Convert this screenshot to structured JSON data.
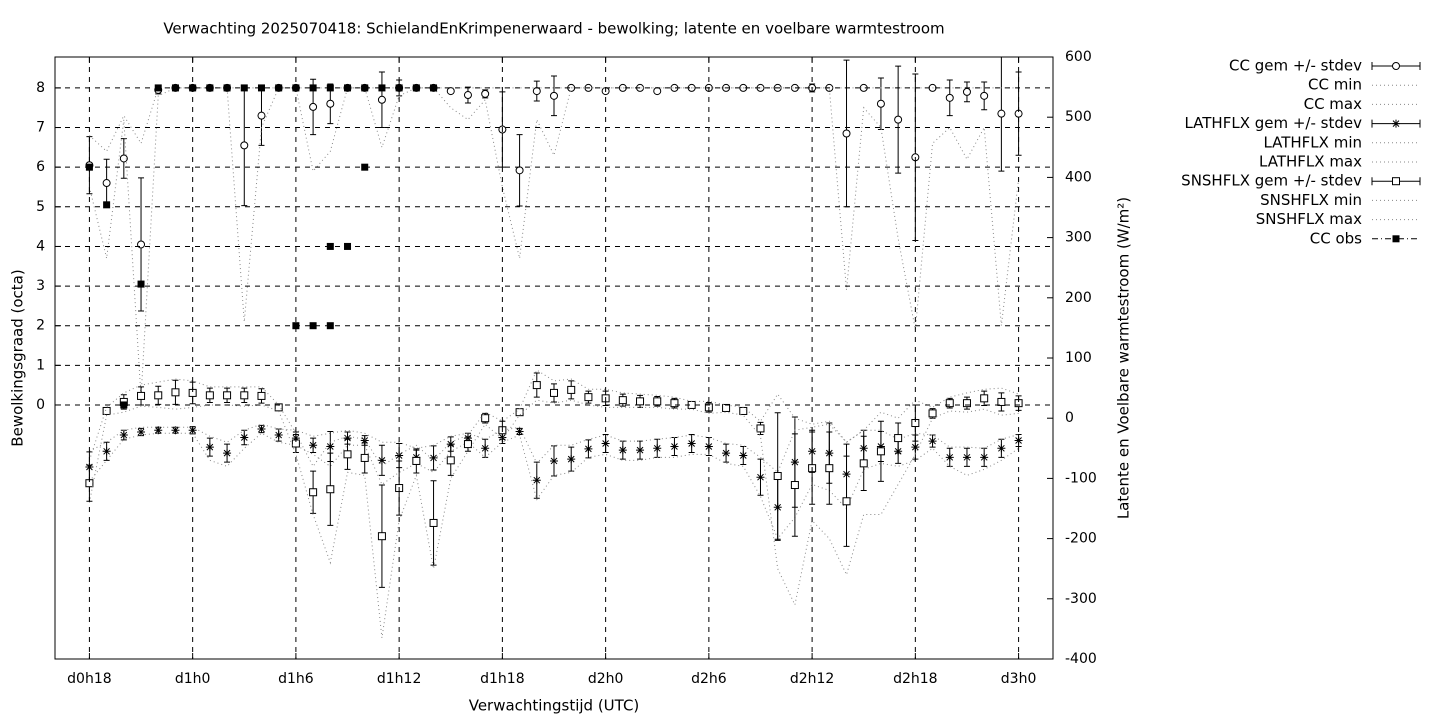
{
  "chart_data": {
    "type": "errorbar",
    "title": "Verwachting 2025070418: SchielandEnKrimpenerwaard - bewolking; latente en voelbare warmtestroom",
    "x_label": "Verwachtingstijd (UTC)",
    "y_label": "Bewolkingsgraad (octa)",
    "y2_label": "Latente en Voelbare warmtestroom (W/m²)",
    "xlim": [
      16,
      74
    ],
    "xticks": [
      {
        "value": 18,
        "label": "d0h18"
      },
      {
        "value": 24,
        "label": "d1h0"
      },
      {
        "value": 30,
        "label": "d1h6"
      },
      {
        "value": 36,
        "label": "d1h12"
      },
      {
        "value": 42,
        "label": "d1h18"
      },
      {
        "value": 48,
        "label": "d2h0"
      },
      {
        "value": 54,
        "label": "d2h6"
      },
      {
        "value": 60,
        "label": "d2h12"
      },
      {
        "value": 66,
        "label": "d2h18"
      },
      {
        "value": 72,
        "label": "d3h0"
      }
    ],
    "ylim": [
      -6.41,
      8.78
    ],
    "yticks": [
      0,
      1,
      2,
      3,
      4,
      5,
      6,
      7,
      8
    ],
    "y2lim": [
      -400,
      600
    ],
    "y2ticks": [
      -400,
      -300,
      -200,
      -100,
      0,
      100,
      200,
      300,
      400,
      500,
      600
    ],
    "grid": true,
    "legend": "outside-right",
    "x": [
      18,
      19,
      20,
      21,
      22,
      23,
      24,
      25,
      26,
      27,
      28,
      29,
      30,
      31,
      32,
      33,
      34,
      35,
      36,
      37,
      38,
      39,
      40,
      41,
      42,
      43,
      44,
      45,
      46,
      47,
      48,
      49,
      50,
      51,
      52,
      53,
      54,
      55,
      56,
      57,
      58,
      59,
      60,
      61,
      62,
      63,
      64,
      65,
      66,
      67,
      68,
      69,
      70,
      71,
      72
    ],
    "series": [
      {
        "name": "CC gem +/- stdev",
        "color": "#000000",
        "axis": "y",
        "marker": "circle",
        "values": [
          6.05,
          5.6,
          6.22,
          4.05,
          7.95,
          8,
          8,
          8,
          8,
          6.55,
          7.3,
          8,
          8,
          7.52,
          7.6,
          8,
          8,
          7.7,
          8,
          8,
          8,
          7.92,
          7.82,
          7.85,
          6.95,
          5.92,
          7.92,
          7.8,
          8,
          8,
          7.92,
          8,
          8,
          7.92,
          8,
          8,
          8,
          8,
          8,
          8,
          8,
          8,
          8,
          8,
          6.85,
          8,
          7.6,
          7.2,
          6.25,
          8,
          7.75,
          7.9,
          7.8,
          7.35,
          7.35
        ],
        "errors": [
          0.72,
          0.6,
          0.5,
          1.68,
          0.1,
          0,
          0,
          0,
          0,
          1.52,
          0.75,
          0,
          0,
          0.7,
          0.5,
          0,
          0,
          0.7,
          0.2,
          0,
          0,
          0.05,
          0.2,
          0.1,
          0.95,
          0.9,
          0.25,
          0.5,
          0,
          0,
          0.05,
          0,
          0,
          0,
          0,
          0,
          0,
          0,
          0,
          0,
          0,
          0,
          0.1,
          0,
          1.85,
          0,
          0.65,
          1.35,
          2.1,
          0,
          0.45,
          0.25,
          0.35,
          1.45,
          1.05
        ]
      },
      {
        "name": "CC min",
        "color": "#888888",
        "axis": "y",
        "line": "dotted",
        "values": [
          5.5,
          3.7,
          7.2,
          0.2,
          7.8,
          8,
          8,
          8,
          8,
          2.1,
          7,
          8,
          8,
          5.9,
          6.4,
          8,
          8,
          6.5,
          7.8,
          8,
          8,
          7.5,
          7.2,
          7.7,
          5.5,
          3.7,
          7.2,
          6.3,
          8,
          8,
          8,
          8,
          8,
          8,
          8,
          8,
          8,
          8,
          8,
          8,
          8,
          8,
          8,
          8,
          2.9,
          7.5,
          7,
          4.2,
          1.9,
          6.6,
          7,
          6.2,
          7,
          2,
          5.7
        ]
      },
      {
        "name": "CC max",
        "color": "#888888",
        "axis": "y",
        "line": "dotted",
        "values": [
          6.8,
          6.4,
          7.3,
          6.6,
          8,
          8,
          8,
          8,
          8,
          8,
          8,
          8,
          8,
          8,
          8,
          8,
          8,
          8,
          8,
          8,
          8,
          8,
          8,
          8,
          8,
          8,
          8,
          8,
          8,
          8,
          8,
          8,
          8,
          8,
          8,
          8,
          8,
          8,
          8,
          8,
          8,
          8,
          8,
          8,
          8,
          8,
          8,
          8,
          8,
          8,
          8,
          8,
          8,
          8,
          8
        ]
      },
      {
        "name": "LATHFLX gem +/- stdev",
        "color": "#000000",
        "axis": "y2",
        "marker": "star",
        "values": [
          -81,
          -55,
          -28,
          -23,
          -20,
          -20,
          -20,
          -48,
          -58,
          -32,
          -18,
          -28,
          -33,
          -45,
          -47,
          -33,
          -37,
          -70,
          -62,
          -65,
          -66,
          -43,
          -33,
          -50,
          -32,
          -22,
          -103,
          -71,
          -68,
          -51,
          -42,
          -53,
          -53,
          -50,
          -47,
          -42,
          -47,
          -58,
          -62,
          -98,
          -148,
          -73,
          -55,
          -58,
          -93,
          -50,
          -47,
          -55,
          -48,
          -38,
          -65,
          -65,
          -65,
          -50,
          -37
        ],
        "errors": [
          25,
          15,
          8,
          6,
          5,
          5,
          6,
          15,
          15,
          12,
          6,
          10,
          10,
          12,
          25,
          10,
          8,
          25,
          20,
          12,
          20,
          12,
          8,
          15,
          10,
          5,
          30,
          25,
          20,
          15,
          15,
          15,
          15,
          15,
          15,
          15,
          15,
          15,
          15,
          30,
          55,
          75,
          35,
          50,
          50,
          30,
          25,
          20,
          20,
          10,
          15,
          15,
          15,
          15,
          10
        ]
      },
      {
        "name": "LATHFLX min",
        "color": "#888888",
        "axis": "y2",
        "line": "dotted",
        "values": [
          -105,
          -70,
          -35,
          -28,
          -25,
          -25,
          -25,
          -70,
          -80,
          -50,
          -25,
          -40,
          -45,
          -60,
          -80,
          -45,
          -45,
          -110,
          -90,
          -75,
          -90,
          -55,
          -40,
          -65,
          -40,
          -28,
          -135,
          -95,
          -90,
          -65,
          -60,
          -70,
          -70,
          -65,
          -65,
          -60,
          -60,
          -75,
          -80,
          -130,
          -200,
          -165,
          -110,
          -120,
          -150,
          -85,
          -75,
          -80,
          -70,
          -50,
          -80,
          -95,
          -85,
          -70,
          -50
        ]
      },
      {
        "name": "LATHFLX max",
        "color": "#888888",
        "axis": "y2",
        "line": "dotted",
        "values": [
          -55,
          -40,
          -20,
          -15,
          -15,
          -15,
          -15,
          -30,
          -40,
          -20,
          -10,
          -18,
          -20,
          -30,
          -25,
          -20,
          -25,
          -40,
          -40,
          -50,
          -45,
          -30,
          -25,
          -35,
          -20,
          -15,
          -75,
          -45,
          -45,
          -35,
          -28,
          -38,
          -38,
          -35,
          -32,
          -28,
          -32,
          -42,
          -45,
          -65,
          -90,
          -20,
          -15,
          -10,
          -40,
          -20,
          -20,
          -35,
          -25,
          -28,
          -48,
          -48,
          -50,
          -35,
          -27
        ]
      },
      {
        "name": "SNSHFLX gem +/- stdev",
        "color": "#000000",
        "axis": "y2",
        "marker": "square",
        "values": [
          -108,
          12,
          27,
          37,
          38,
          43,
          42,
          38,
          38,
          38,
          37,
          18,
          -42,
          -123,
          -118,
          -60,
          -66,
          -196,
          -116,
          -71,
          -174,
          -70,
          -43,
          0,
          -20,
          10,
          55,
          42,
          47,
          35,
          33,
          30,
          28,
          28,
          25,
          22,
          18,
          17,
          12,
          -17,
          -96,
          -111,
          -83,
          -83,
          -138,
          -75,
          -55,
          -33,
          -8,
          8,
          25,
          25,
          33,
          27,
          25
        ],
        "errors": [
          30,
          5,
          12,
          15,
          15,
          20,
          18,
          12,
          12,
          12,
          12,
          3,
          15,
          35,
          60,
          25,
          25,
          85,
          45,
          20,
          70,
          25,
          12,
          8,
          15,
          5,
          20,
          15,
          15,
          10,
          12,
          10,
          10,
          8,
          8,
          5,
          8,
          5,
          5,
          10,
          105,
          85,
          60,
          60,
          75,
          45,
          50,
          25,
          30,
          8,
          8,
          10,
          12,
          15,
          12
        ]
      },
      {
        "name": "SNSHFLX min",
        "color": "#888888",
        "axis": "y2",
        "line": "dotted",
        "values": [
          -140,
          5,
          10,
          20,
          18,
          15,
          18,
          22,
          22,
          20,
          22,
          12,
          -60,
          -160,
          -240,
          -90,
          -95,
          -365,
          -170,
          -95,
          -250,
          -100,
          -55,
          -10,
          -35,
          5,
          30,
          25,
          30,
          22,
          18,
          18,
          18,
          18,
          15,
          15,
          8,
          10,
          5,
          -30,
          -250,
          -310,
          -170,
          -200,
          -260,
          -160,
          -160,
          -110,
          -60,
          0,
          12,
          10,
          15,
          5,
          8
        ]
      },
      {
        "name": "SNSHFLX max",
        "color": "#888888",
        "axis": "y2",
        "line": "dotted",
        "values": [
          -70,
          18,
          42,
          55,
          60,
          65,
          62,
          52,
          52,
          52,
          52,
          22,
          -25,
          -80,
          -40,
          -30,
          -35,
          -80,
          -60,
          -45,
          -70,
          -40,
          -28,
          10,
          -5,
          15,
          80,
          62,
          65,
          48,
          48,
          42,
          40,
          38,
          35,
          28,
          28,
          22,
          18,
          -5,
          40,
          0,
          -10,
          -5,
          -40,
          -20,
          10,
          0,
          30,
          18,
          35,
          42,
          48,
          50,
          40
        ]
      },
      {
        "name": "CC obs",
        "color": "#000000",
        "axis": "y",
        "marker": "filled-square",
        "x": [
          18,
          19,
          20,
          21,
          22,
          23,
          24,
          25,
          26,
          27,
          28,
          29,
          30,
          30,
          31,
          31,
          32,
          32,
          32,
          33,
          33,
          34,
          34,
          35,
          36,
          37,
          38
        ],
        "values": [
          6,
          5.05,
          0,
          3.05,
          8,
          8,
          8,
          8,
          8,
          8,
          8,
          8,
          8,
          2,
          8,
          2,
          8,
          4,
          2,
          8,
          4,
          8,
          6,
          8,
          8,
          8,
          8
        ]
      }
    ]
  }
}
